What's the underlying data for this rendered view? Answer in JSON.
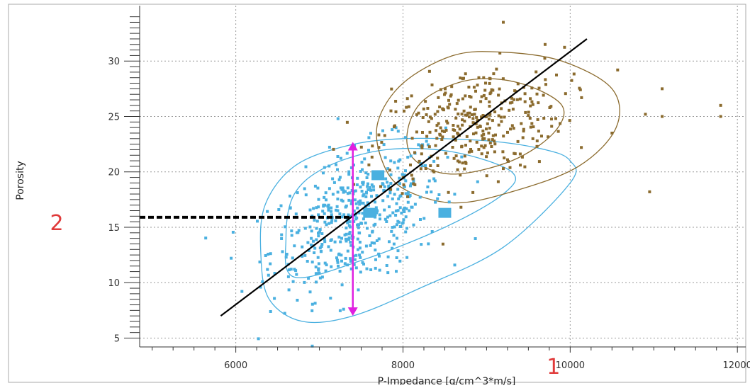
{
  "chart_data": {
    "type": "scatter",
    "xlabel": "P-Impedance [g/cm^3*m/s]",
    "ylabel": "Porosity",
    "xlim": [
      4850,
      12100
    ],
    "ylim": [
      4.2,
      35
    ],
    "x_ticks": [
      6000,
      8000,
      10000,
      12000
    ],
    "y_ticks": [
      5,
      10,
      15,
      20,
      25,
      30
    ],
    "grid": true,
    "colors": {
      "cyan_cluster": "#4ab0e0",
      "brown_cluster": "#8b6b2e",
      "trend_line": "#000000",
      "range_arrow": "#e020e0",
      "dashed_line": "#000000",
      "marker_text": "#e03a3a"
    },
    "series": [
      {
        "color": "#4ab0e0",
        "generated": {
          "count": 500,
          "mean": [
            7450,
            15.8
          ],
          "sd": [
            520,
            3.3
          ],
          "corr": 0.45
        },
        "square_markers": [
          [
            7700,
            19.7
          ],
          [
            7600,
            16.3
          ],
          [
            8500,
            16.3
          ]
        ]
      },
      {
        "color": "#8b6b2e",
        "generated": {
          "count": 330,
          "mean": [
            8800,
            24.2
          ],
          "sd": [
            560,
            2.7
          ],
          "corr": 0.35
        },
        "outliers": [
          [
            9200,
            33.5
          ],
          [
            9700,
            31.5
          ],
          [
            11100,
            27.5
          ],
          [
            11800,
            26.0
          ],
          [
            11800,
            25.0
          ],
          [
            10900,
            25.2
          ],
          [
            11100,
            25.0
          ],
          [
            10950,
            18.2
          ],
          [
            10500,
            23.5
          ]
        ]
      }
    ],
    "contours": [
      {
        "color": "#4ab0e0",
        "points": [
          [
            6800,
            6.5
          ],
          [
            7400,
            7.0
          ],
          [
            8200,
            9.5
          ],
          [
            9200,
            13.2
          ],
          [
            10000,
            19.0
          ],
          [
            10000,
            21.0
          ],
          [
            9700,
            22.0
          ],
          [
            9000,
            22.8
          ],
          [
            8000,
            23.0
          ],
          [
            7300,
            22.3
          ],
          [
            6700,
            20.5
          ],
          [
            6350,
            17.0
          ],
          [
            6300,
            12.5
          ],
          [
            6400,
            8.5
          ]
        ]
      },
      {
        "color": "#4ab0e0",
        "points": [
          [
            6700,
            10.5
          ],
          [
            7500,
            12.0
          ],
          [
            8500,
            15.0
          ],
          [
            9200,
            18.0
          ],
          [
            9300,
            20.0
          ],
          [
            8600,
            21.8
          ],
          [
            7800,
            22.0
          ],
          [
            7100,
            20.5
          ],
          [
            6700,
            18.0
          ],
          [
            6600,
            14.0
          ]
        ]
      },
      {
        "color": "#8b6b2e",
        "points": [
          [
            8600,
            17.2
          ],
          [
            9300,
            18.2
          ],
          [
            10100,
            20.5
          ],
          [
            10550,
            24.0
          ],
          [
            10500,
            27.5
          ],
          [
            9900,
            30.0
          ],
          [
            9200,
            30.8
          ],
          [
            8600,
            30.5
          ],
          [
            8000,
            28.0
          ],
          [
            7700,
            24.5
          ],
          [
            7750,
            21.0
          ],
          [
            8000,
            18.5
          ]
        ]
      },
      {
        "color": "#8b6b2e",
        "points": [
          [
            8600,
            19.8
          ],
          [
            9300,
            21.0
          ],
          [
            9800,
            23.5
          ],
          [
            9900,
            26.0
          ],
          [
            9400,
            28.0
          ],
          [
            8800,
            28.3
          ],
          [
            8250,
            26.5
          ],
          [
            8050,
            23.5
          ],
          [
            8150,
            21.0
          ]
        ]
      }
    ],
    "trend_line": [
      [
        5820,
        7.0
      ],
      [
        10200,
        32.0
      ]
    ],
    "dashed_line": {
      "from": [
        4850,
        15.9
      ],
      "to": [
        7400,
        15.9
      ]
    },
    "range_arrow": {
      "x": 7400,
      "y_from": 7.0,
      "y_to": 22.7
    },
    "markers": [
      {
        "label": "2",
        "x": 5200,
        "y": 15.5
      },
      {
        "label": "1",
        "x": 9800,
        "y": 4.2
      }
    ]
  }
}
